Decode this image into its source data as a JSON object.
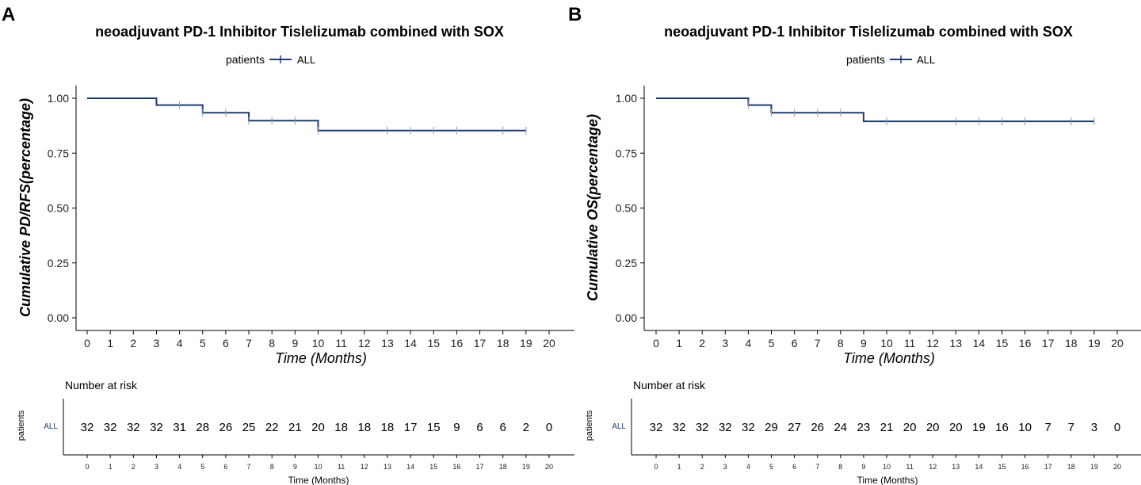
{
  "colors": {
    "curve": "#1f3b73",
    "axis": "#000000",
    "tick_label": "#222222",
    "risk_label": "#1f3b73"
  },
  "chart_data": [
    {
      "panel_label": "A",
      "type": "line",
      "subtype": "kaplan-meier",
      "title": "neoadjuvant PD-1 Inhibitor Tislelizumab combined with SOX",
      "legend_title": "patients",
      "legend_entry": "ALL",
      "legend_position": "top",
      "xlabel": "Time (Months)",
      "ylabel": "Cumulative PD/RFS(percentage)",
      "xlim": [
        0,
        20
      ],
      "ylim": [
        0,
        1
      ],
      "x_ticks": [
        "0",
        "1",
        "2",
        "3",
        "4",
        "5",
        "6",
        "7",
        "8",
        "9",
        "10",
        "11",
        "12",
        "13",
        "14",
        "15",
        "16",
        "17",
        "18",
        "19",
        "20"
      ],
      "y_ticks": [
        "0.00",
        "0.25",
        "0.50",
        "0.75",
        "1.00"
      ],
      "steps": [
        {
          "x": 0,
          "y": 1.0
        },
        {
          "x": 3,
          "y": 0.969
        },
        {
          "x": 5,
          "y": 0.934
        },
        {
          "x": 7,
          "y": 0.898
        },
        {
          "x": 10,
          "y": 0.853
        }
      ],
      "end_x": 19,
      "censor_times": [
        4,
        5,
        6,
        7,
        8,
        9,
        10,
        13,
        14,
        15,
        16,
        18,
        19
      ],
      "risk_table": {
        "title": "Number at risk",
        "ylabel": "patients",
        "group": "ALL",
        "xlabel": "Time (Months)",
        "times": [
          "0",
          "1",
          "2",
          "3",
          "4",
          "5",
          "6",
          "7",
          "8",
          "9",
          "10",
          "11",
          "12",
          "13",
          "14",
          "15",
          "16",
          "17",
          "18",
          "19",
          "20"
        ],
        "values": [
          "32",
          "32",
          "32",
          "32",
          "31",
          "28",
          "26",
          "25",
          "22",
          "21",
          "20",
          "18",
          "18",
          "18",
          "17",
          "15",
          "9",
          "6",
          "6",
          "2",
          "0"
        ]
      }
    },
    {
      "panel_label": "B",
      "type": "line",
      "subtype": "kaplan-meier",
      "title": "neoadjuvant PD-1 Inhibitor Tislelizumab combined with SOX",
      "legend_title": "patients",
      "legend_entry": "ALL",
      "legend_position": "top",
      "xlabel": "Time (Months)",
      "ylabel": "Cumulative OS(percentage)",
      "xlim": [
        0,
        20
      ],
      "ylim": [
        0,
        1
      ],
      "x_ticks": [
        "0",
        "1",
        "2",
        "3",
        "4",
        "5",
        "6",
        "7",
        "8",
        "9",
        "10",
        "11",
        "12",
        "13",
        "14",
        "15",
        "16",
        "17",
        "18",
        "19",
        "20"
      ],
      "y_ticks": [
        "0.00",
        "0.25",
        "0.50",
        "0.75",
        "1.00"
      ],
      "steps": [
        {
          "x": 0,
          "y": 1.0
        },
        {
          "x": 4,
          "y": 0.969
        },
        {
          "x": 5,
          "y": 0.934
        },
        {
          "x": 9,
          "y": 0.895
        }
      ],
      "end_x": 19,
      "censor_times": [
        4,
        5,
        6,
        7,
        8,
        10,
        13,
        14,
        15,
        16,
        18,
        19
      ],
      "risk_table": {
        "title": "Number at risk",
        "ylabel": "patients",
        "group": "ALL",
        "xlabel": "Time (Months)",
        "times": [
          "0",
          "1",
          "2",
          "3",
          "4",
          "5",
          "6",
          "7",
          "8",
          "9",
          "10",
          "11",
          "12",
          "13",
          "14",
          "15",
          "16",
          "17",
          "18",
          "19",
          "20"
        ],
        "values": [
          "32",
          "32",
          "32",
          "32",
          "32",
          "29",
          "27",
          "26",
          "24",
          "23",
          "21",
          "20",
          "20",
          "20",
          "19",
          "16",
          "10",
          "7",
          "7",
          "3",
          "0"
        ]
      }
    }
  ]
}
